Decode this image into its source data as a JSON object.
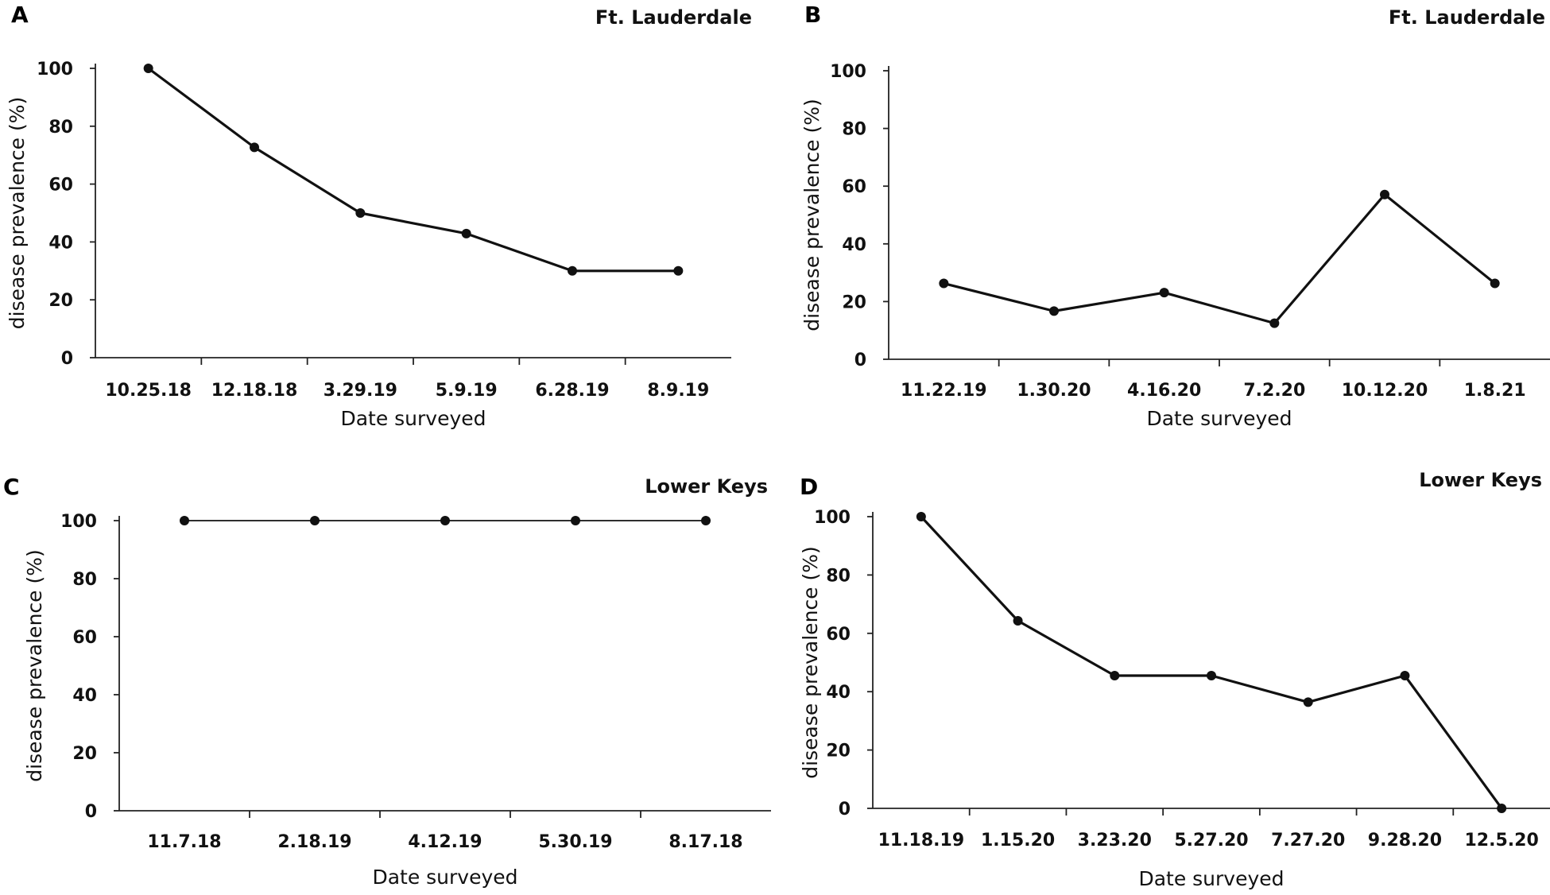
{
  "chart_data": [
    {
      "panel": "A",
      "type": "line",
      "title": "Ft. Lauderdale",
      "xlabel": "Date surveyed",
      "ylabel": "disease prevalence (%)",
      "categories": [
        "10.25.18",
        "12.18.18",
        "3.29.19",
        "5.9.19",
        "6.28.19",
        "8.9.19"
      ],
      "values": [
        100,
        72.7,
        50,
        42.9,
        30,
        30
      ],
      "ylim": [
        0,
        100
      ],
      "yticks": [
        "0",
        "20",
        "40",
        "60",
        "80",
        "100"
      ]
    },
    {
      "panel": "B",
      "type": "line",
      "title": "Ft. Lauderdale",
      "xlabel": "Date surveyed",
      "ylabel": "disease prevalence (%)",
      "categories": [
        "11.22.19",
        "1.30.20",
        "4.16.20",
        "7.2.20",
        "10.12.20",
        "1.8.21"
      ],
      "values": [
        26.3,
        16.7,
        23.1,
        12.5,
        57.1,
        26.3
      ],
      "ylim": [
        0,
        100
      ],
      "yticks": [
        "0",
        "20",
        "40",
        "60",
        "80",
        "100"
      ]
    },
    {
      "panel": "C",
      "type": "line",
      "title": "Lower Keys",
      "xlabel": "Date surveyed",
      "ylabel": "disease prevalence (%)",
      "categories": [
        "11.7.18",
        "2.18.19",
        "4.12.19",
        "5.30.19",
        "8.17.18"
      ],
      "values": [
        100,
        100,
        100,
        100,
        100
      ],
      "ylim": [
        0,
        100
      ],
      "yticks": [
        "0",
        "20",
        "40",
        "60",
        "80",
        "100"
      ]
    },
    {
      "panel": "D",
      "type": "line",
      "title": "Lower Keys",
      "xlabel": "Date surveyed",
      "ylabel": "disease prevalence (%)",
      "categories": [
        "11.18.19",
        "1.15.20",
        "3.23.20",
        "5.27.20",
        "7.27.20",
        "9.28.20",
        "12.5.20"
      ],
      "values": [
        100,
        64.3,
        45.5,
        45.5,
        36.4,
        45.5,
        0
      ],
      "ylim": [
        0,
        100
      ],
      "yticks": [
        "0",
        "20",
        "40",
        "60",
        "80",
        "100"
      ]
    }
  ]
}
